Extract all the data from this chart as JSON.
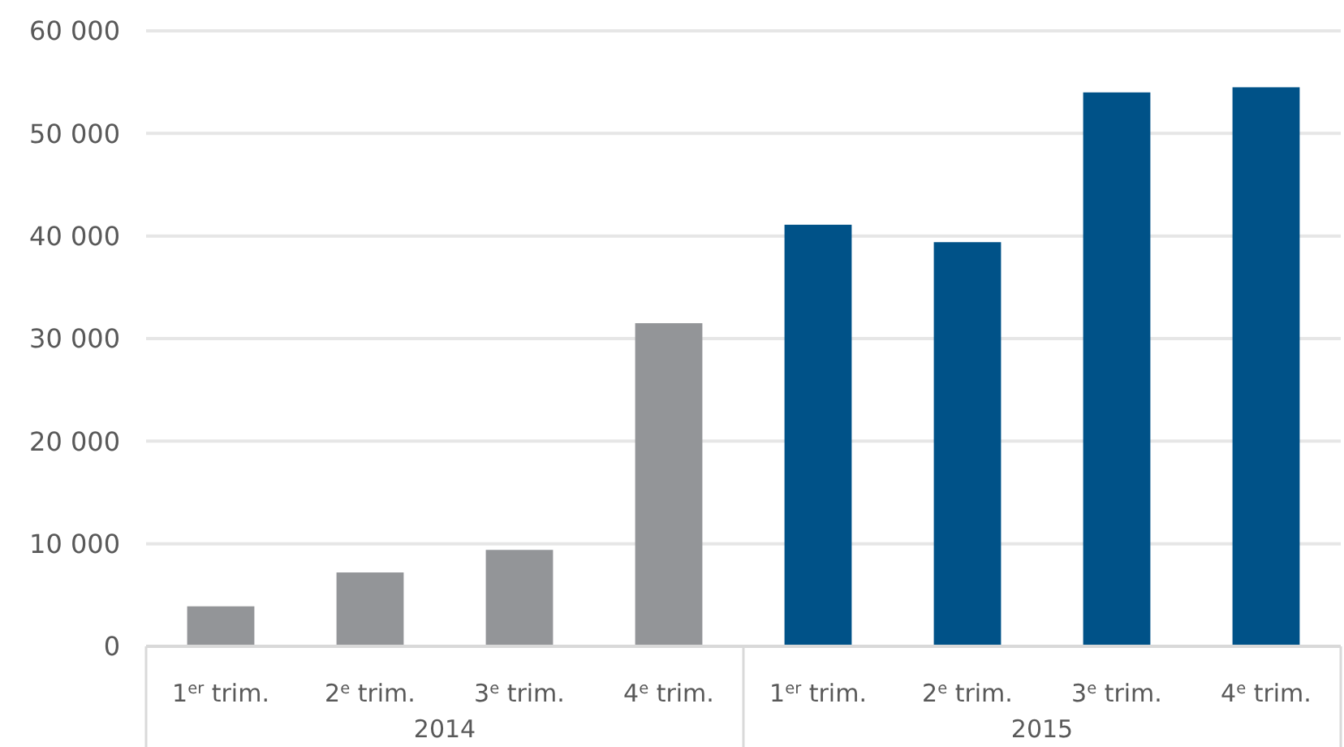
{
  "chart_data": {
    "type": "bar",
    "categories": [
      "1$^{er}$ trim.",
      "2$^{e}$ trim.",
      "3$^{e}$ trim.",
      "4$^{e}$ trim.",
      "1$^{er}$ trim.",
      "2$^{e}$ trim.",
      "3$^{e}$ trim.",
      "4$^{e}$ trim."
    ],
    "values": [
      3900,
      7200,
      9400,
      31500,
      41100,
      39400,
      54000,
      54500
    ],
    "colors": [
      "#939598",
      "#939598",
      "#939598",
      "#939598",
      "#005288",
      "#005288",
      "#005288",
      "#005288"
    ],
    "annotations": [
      "2014",
      "2015"
    ],
    "ylim": [
      0,
      60000
    ],
    "yticks": [
      {
        "value": 0,
        "label": "0"
      },
      {
        "value": 10000,
        "label": "10 000"
      },
      {
        "value": 20000,
        "label": "20 000"
      },
      {
        "value": 30000,
        "label": "30 000"
      },
      {
        "value": 40000,
        "label": "40 000"
      },
      {
        "value": 50000,
        "label": "50 000"
      },
      {
        "value": 60000,
        "label": "60 000"
      }
    ],
    "grid": "y"
  }
}
